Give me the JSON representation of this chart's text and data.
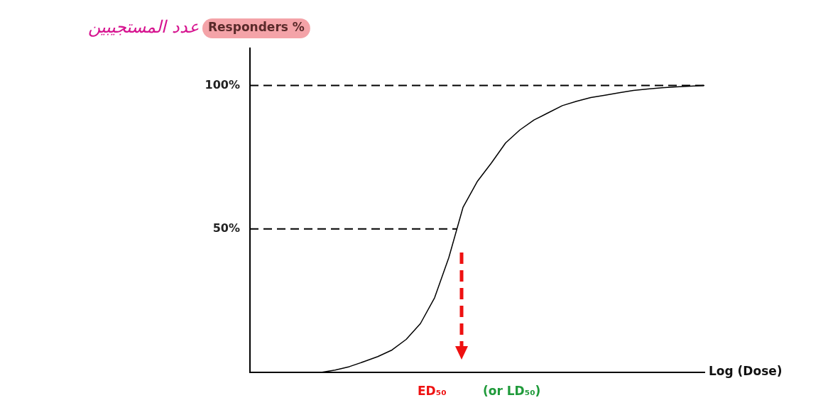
{
  "chart_data": {
    "type": "line",
    "ylabel": "Responders %",
    "xlabel": "Log (Dose)",
    "categories": [
      null,
      null,
      null,
      null,
      null,
      null,
      null,
      null,
      null,
      null,
      null,
      null,
      null,
      null,
      null,
      null,
      null,
      null,
      null,
      null,
      null,
      null,
      null,
      null,
      null,
      null,
      null,
      null,
      null,
      null,
      null,
      null,
      null
    ],
    "series": [
      {
        "color": "#000000",
        "values": [
          null,
          null,
          null,
          null,
          null,
          0,
          0.8,
          2,
          3.7,
          5.5,
          7.8,
          11.5,
          17,
          26,
          40,
          57.5,
          66.5,
          73,
          80,
          84.5,
          88,
          90.5,
          93,
          94.5,
          95.8,
          96.6,
          97.5,
          98.3,
          98.8,
          99.2,
          99.5,
          99.8,
          100
        ]
      }
    ],
    "ylim": [
      0,
      113
    ],
    "yticks": [
      {
        "value": 50,
        "label": "50%"
      },
      {
        "value": 100,
        "label": "100%"
      }
    ],
    "ref_lines": [
      {
        "axis": "y",
        "value": 100,
        "color": "#000000",
        "line_style": "dashed"
      },
      {
        "axis": "y",
        "value": 50,
        "color": "#000000",
        "line_style": "dashed"
      }
    ],
    "annotations": [
      "عدد المستجيبين",
      "ED₅₀",
      "(or LD₅₀)"
    ],
    "grid": false,
    "legend": false,
    "marker": "none",
    "line_style": "solid",
    "tick_labels": "y"
  }
}
